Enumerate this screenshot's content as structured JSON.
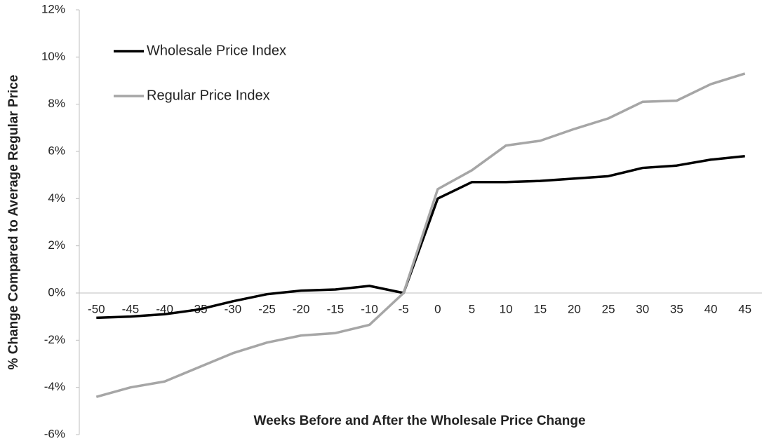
{
  "chart_data": {
    "type": "line",
    "ylabel": "% Change Compared to Average Regular Price",
    "xlabel": "Weeks Before and After the Wholesale Price Change",
    "categories": [
      "-50",
      "-45",
      "-40",
      "-35",
      "-30",
      "-25",
      "-20",
      "-15",
      "-10",
      "-5",
      "0",
      "5",
      "10",
      "15",
      "20",
      "25",
      "30",
      "35",
      "40",
      "45"
    ],
    "series": [
      {
        "name": "Wholesale Price Index",
        "color": "#000000",
        "values": [
          -1.05,
          -1.0,
          -0.9,
          -0.7,
          -0.35,
          -0.05,
          0.1,
          0.15,
          0.3,
          0.0,
          4.0,
          4.7,
          4.7,
          4.75,
          4.85,
          4.95,
          5.3,
          5.4,
          5.65,
          5.8
        ]
      },
      {
        "name": "Regular Price Index",
        "color": "#a6a6a6",
        "values": [
          -4.4,
          -4.0,
          -3.75,
          -3.15,
          -2.55,
          -2.1,
          -1.8,
          -1.7,
          -1.35,
          0.0,
          4.4,
          5.2,
          6.25,
          6.45,
          6.95,
          7.4,
          8.1,
          8.15,
          8.85,
          9.3
        ]
      }
    ],
    "ylim": [
      -6,
      12
    ],
    "yticks": [
      {
        "value": -6,
        "label": "-6%"
      },
      {
        "value": -4,
        "label": "-4%"
      },
      {
        "value": -2,
        "label": "-2%"
      },
      {
        "value": 0,
        "label": "0%"
      },
      {
        "value": 2,
        "label": "2%"
      },
      {
        "value": 4,
        "label": "4%"
      },
      {
        "value": 6,
        "label": "6%"
      },
      {
        "value": 8,
        "label": "8%"
      },
      {
        "value": 10,
        "label": "10%"
      },
      {
        "value": 12,
        "label": "12%"
      }
    ],
    "legend": "upper left"
  }
}
